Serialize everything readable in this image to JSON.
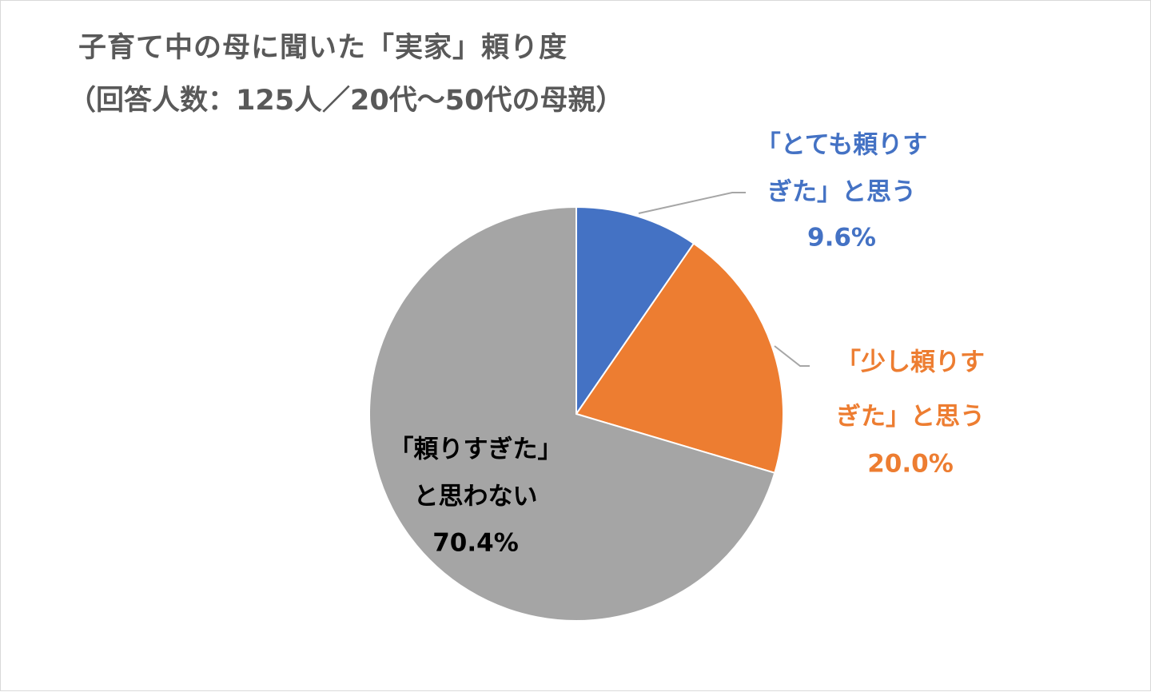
{
  "chart_data": {
    "type": "pie",
    "title": "子育て中の母に聞いた「実家」頼り度",
    "subtitle": "（回答人数：125人／20代～50代の母親）",
    "slices": [
      {
        "label_lines": [
          "「とても頼りす",
          "ぎた」と思う"
        ],
        "value": 9.6,
        "value_label": "9.6%",
        "color": "#4472c4",
        "label_color": "#4472c4"
      },
      {
        "label_lines": [
          "「少し頼りす",
          "ぎた」と思う"
        ],
        "value": 20.0,
        "value_label": "20.0%",
        "color": "#ed7d31",
        "label_color": "#ed7d31"
      },
      {
        "label_lines": [
          "「頼りすぎた」",
          "と思わない"
        ],
        "value": 70.4,
        "value_label": "70.4%",
        "color": "#a5a5a5",
        "label_color": "#000000"
      }
    ]
  }
}
